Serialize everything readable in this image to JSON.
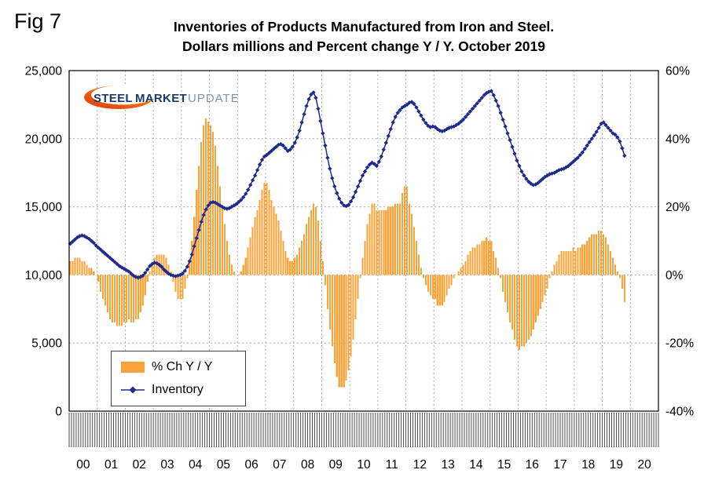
{
  "fig_label": "Fig 7",
  "title": {
    "line1": "Inventories of Products Manufactured from Iron and Steel.",
    "line2": "Dollars millions and Percent change Y / Y. October 2019"
  },
  "logo": {
    "word1": "STEEL",
    "word2": "MARKET",
    "word3": "UPDATE"
  },
  "legend": {
    "bar_label": "% Ch Y / Y",
    "line_label": "Inventory"
  },
  "colors": {
    "bar": "#FBA338",
    "line": "#1F2B8C",
    "grid": "#ABABAB",
    "tick": "#3A3A3A",
    "logo_navy": "#1A3A6B",
    "logo_gray": "#8095AB",
    "logo_orange": "#F7941D",
    "logo_red": "#E03A0C"
  },
  "chart_data": {
    "type": "bar+line",
    "title": "Inventories of Products Manufactured from Iron and Steel. Dollars millions and Percent change Y / Y. October 2019",
    "x_unit": "month",
    "start": "2000-01",
    "end": "2019-10",
    "year_labels": [
      "00",
      "01",
      "02",
      "03",
      "04",
      "05",
      "06",
      "07",
      "08",
      "09",
      "10",
      "11",
      "12",
      "13",
      "14",
      "15",
      "16",
      "17",
      "18",
      "19",
      "20"
    ],
    "left_axis": {
      "min": 0,
      "max": 25000,
      "ticks": [
        {
          "label": "25,000",
          "value": 25000
        },
        {
          "label": "20,000",
          "value": 20000
        },
        {
          "label": "15,000",
          "value": 15000
        },
        {
          "label": "10,000",
          "value": 10000
        },
        {
          "label": "5,000",
          "value": 5000
        },
        {
          "label": "0",
          "value": 0
        }
      ],
      "gridlines": [
        20000,
        15000,
        10000,
        5000
      ]
    },
    "right_axis": {
      "min": -40,
      "max": 60,
      "ticks": [
        {
          "label": "60%",
          "value": 60
        },
        {
          "label": "40%",
          "value": 40
        },
        {
          "label": "20%",
          "value": 20
        },
        {
          "label": "0%",
          "value": 0
        },
        {
          "label": "-20%",
          "value": -20
        },
        {
          "label": "-40%",
          "value": -40
        }
      ]
    },
    "grid": {
      "vertical": "yearly-dashed",
      "horizontal": "every-5000-dashed"
    },
    "legend_position": "bottom-left-inside",
    "series": [
      {
        "name": "% Ch Y / Y",
        "type": "bar",
        "axis": "right",
        "color": "#FBA338",
        "values": [
          4,
          4,
          5,
          5,
          5,
          4,
          4,
          3,
          2,
          2,
          1,
          0,
          -2,
          -5,
          -7,
          -9,
          -11,
          -13,
          -14,
          -14,
          -15,
          -15,
          -15,
          -14,
          -14,
          -13,
          -14,
          -14,
          -13,
          -13,
          -11,
          -9,
          -6,
          -2,
          1,
          3,
          5,
          6,
          6,
          6,
          6,
          5,
          3,
          1,
          -2,
          -5,
          -7,
          -7,
          -7,
          -4,
          -1,
          4,
          10,
          17,
          25,
          32,
          39,
          44,
          46,
          45,
          44,
          42,
          38,
          32,
          26,
          20,
          15,
          10,
          6,
          3,
          1,
          0,
          0,
          1,
          3,
          5,
          8,
          11,
          14,
          17,
          19,
          22,
          25,
          27,
          27,
          25,
          22,
          20,
          18,
          16,
          13,
          10,
          7,
          5,
          4,
          4,
          5,
          6,
          8,
          10,
          12,
          15,
          17,
          19,
          21,
          20,
          16,
          10,
          4,
          -3,
          -10,
          -16,
          -21,
          -26,
          -30,
          -33,
          -33,
          -33,
          -31,
          -28,
          -24,
          -19,
          -13,
          -7,
          -1,
          5,
          10,
          15,
          18,
          21,
          21,
          19,
          19,
          19,
          19,
          19,
          20,
          20,
          20,
          21,
          21,
          21,
          24,
          26,
          26,
          21,
          18,
          14,
          10,
          6,
          2,
          -1,
          -3,
          -5,
          -6,
          -7,
          -7,
          -9,
          -9,
          -9,
          -8,
          -6,
          -4,
          -3,
          -1,
          0,
          1,
          2,
          3,
          4,
          6,
          7,
          8,
          8,
          9,
          9,
          10,
          10,
          11,
          10,
          10,
          7,
          5,
          2,
          -1,
          -5,
          -8,
          -11,
          -14,
          -16,
          -19,
          -21,
          -22,
          -21,
          -21,
          -20,
          -19,
          -18,
          -16,
          -14,
          -12,
          -10,
          -8,
          -6,
          -4,
          -1,
          1,
          3,
          4,
          6,
          7,
          7,
          7,
          7,
          7,
          8,
          7,
          8,
          8,
          9,
          9,
          10,
          11,
          12,
          12,
          12,
          13,
          13,
          12,
          11,
          9,
          7,
          5,
          3,
          1,
          -1,
          -4,
          -8
        ]
      },
      {
        "name": "Inventory",
        "type": "line",
        "axis": "left",
        "color": "#1F2B8C",
        "marker": "diamond",
        "values": [
          12300,
          12450,
          12600,
          12750,
          12850,
          12900,
          12850,
          12750,
          12650,
          12500,
          12350,
          12150,
          12000,
          11850,
          11700,
          11550,
          11400,
          11250,
          11100,
          10950,
          10800,
          10650,
          10550,
          10450,
          10350,
          10250,
          10100,
          9950,
          9850,
          9800,
          9850,
          9950,
          10150,
          10400,
          10650,
          10800,
          10900,
          10850,
          10750,
          10600,
          10400,
          10250,
          10100,
          10000,
          9950,
          9900,
          9950,
          10000,
          10100,
          10300,
          10600,
          11000,
          11500,
          12100,
          12700,
          13300,
          13900,
          14400,
          14800,
          15100,
          15300,
          15350,
          15300,
          15200,
          15100,
          15000,
          14900,
          14850,
          14900,
          15000,
          15100,
          15200,
          15350,
          15500,
          15700,
          15950,
          16250,
          16600,
          16950,
          17300,
          17700,
          18100,
          18450,
          18700,
          18800,
          18950,
          19100,
          19250,
          19400,
          19550,
          19600,
          19500,
          19300,
          19100,
          19200,
          19400,
          19700,
          20100,
          20600,
          21200,
          21800,
          22400,
          22900,
          23250,
          23400,
          23000,
          22200,
          21300,
          20400,
          19500,
          18600,
          17800,
          17100,
          16500,
          16000,
          15600,
          15300,
          15100,
          15050,
          15150,
          15400,
          15700,
          16100,
          16500,
          16900,
          17300,
          17600,
          17900,
          18100,
          18250,
          18150,
          18000,
          18300,
          18700,
          19200,
          19700,
          20200,
          20700,
          21200,
          21600,
          21900,
          22100,
          22300,
          22400,
          22500,
          22650,
          22700,
          22550,
          22300,
          22000,
          21700,
          21400,
          21150,
          20950,
          20850,
          20900,
          20850,
          20700,
          20600,
          20550,
          20600,
          20700,
          20800,
          20850,
          20900,
          21000,
          21100,
          21250,
          21400,
          21600,
          21800,
          22000,
          22200,
          22400,
          22600,
          22800,
          23000,
          23200,
          23350,
          23450,
          23500,
          23200,
          22800,
          22400,
          21900,
          21400,
          20900,
          20400,
          19900,
          19400,
          18900,
          18400,
          18000,
          17600,
          17300,
          17050,
          16850,
          16700,
          16600,
          16650,
          16750,
          16900,
          17050,
          17200,
          17300,
          17400,
          17450,
          17500,
          17600,
          17700,
          17750,
          17800,
          17900,
          18000,
          18150,
          18300,
          18450,
          18600,
          18800,
          19000,
          19250,
          19500,
          19750,
          20000,
          20250,
          20500,
          20800,
          21100,
          21200,
          21000,
          20800,
          20600,
          20400,
          20300,
          20100,
          19800,
          19300,
          18750
        ]
      }
    ]
  }
}
